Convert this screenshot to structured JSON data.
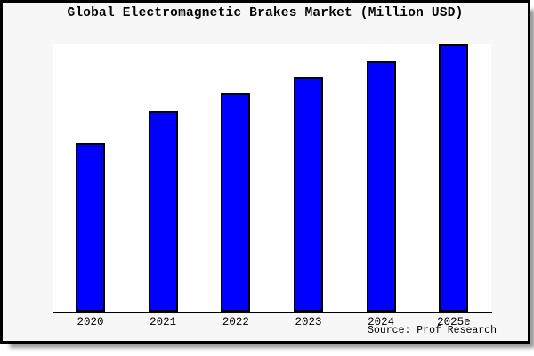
{
  "title": "Global Electromagnetic Brakes Market (Million USD)",
  "source_note": "Source: Prof Research",
  "chart_data": {
    "type": "bar",
    "title": "Global Electromagnetic Brakes Market (Million USD)",
    "categories": [
      "2020",
      "2021",
      "2022",
      "2023",
      "2024",
      "2025e"
    ],
    "values": [
      63,
      75,
      81.5,
      87.5,
      93.5,
      100
    ],
    "values_note": "relative index estimated from bar heights; no y-axis labels shown, 2025e = 100",
    "xlabel": "",
    "ylabel": "",
    "ylim": [
      0,
      100.3
    ],
    "grid": false,
    "legend": "none",
    "annotations": [
      "Source: Prof Research"
    ]
  },
  "colors": {
    "bar_fill": "#0000ff",
    "bar_border": "#000000",
    "figure_background": "#f7f7f7",
    "plot_background": "#ffffff",
    "frame_border": "#000000",
    "shadow": "#9c9c9c",
    "text": "#000000"
  }
}
